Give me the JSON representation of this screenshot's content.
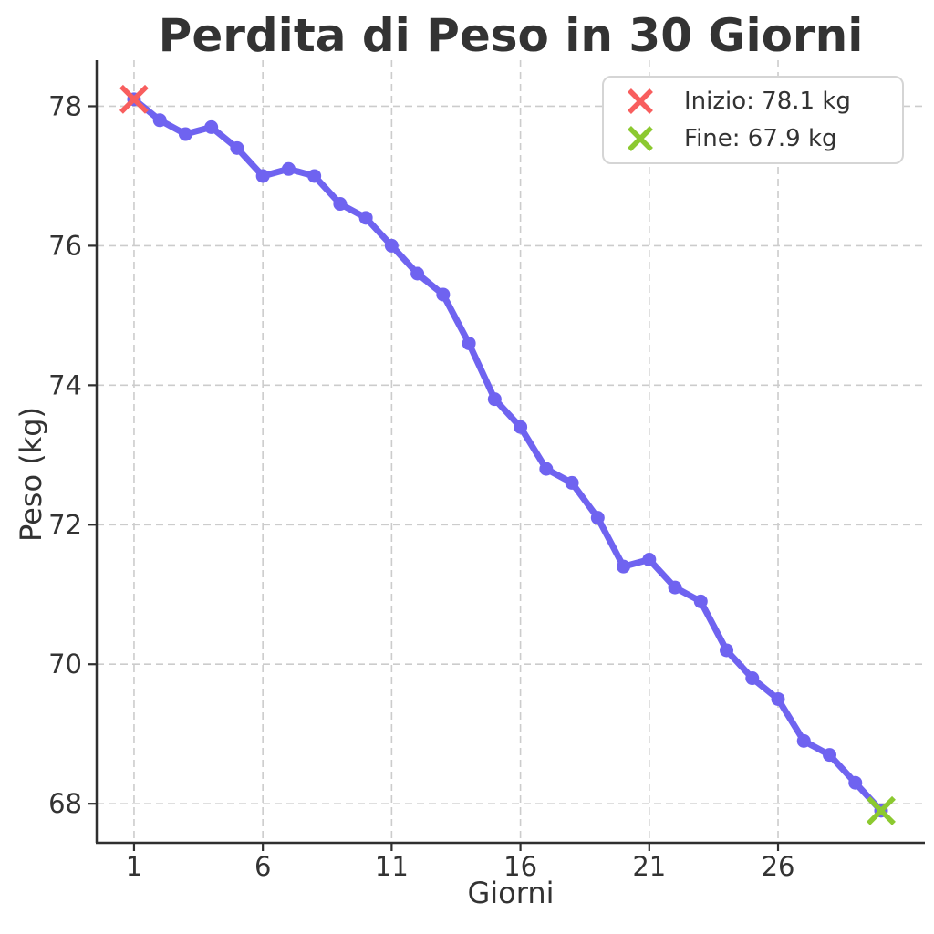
{
  "figure": {
    "background": "#ffffff"
  },
  "chart_data": {
    "type": "line",
    "title": "Perdita di Peso in 30 Giorni",
    "xlabel": "Giorni",
    "ylabel": "Peso (kg)",
    "x": [
      1,
      2,
      3,
      4,
      5,
      6,
      7,
      8,
      9,
      10,
      11,
      12,
      13,
      14,
      15,
      16,
      17,
      18,
      19,
      20,
      21,
      22,
      23,
      24,
      25,
      26,
      27,
      28,
      29,
      30
    ],
    "series": [
      {
        "name": "Peso",
        "values": [
          78.1,
          77.8,
          77.6,
          77.7,
          77.4,
          77.0,
          77.1,
          77.0,
          76.6,
          76.4,
          76.0,
          75.6,
          75.3,
          74.6,
          73.8,
          73.4,
          72.8,
          72.6,
          72.1,
          71.4,
          71.5,
          71.1,
          70.9,
          70.2,
          69.8,
          69.5,
          68.9,
          68.7,
          68.3,
          67.9
        ]
      }
    ],
    "xlim": [
      -0.45,
      31.7
    ],
    "ylim": [
      67.44,
      78.66
    ],
    "xticks": [
      1,
      6,
      11,
      16,
      21,
      26
    ],
    "yticks": [
      68,
      70,
      72,
      74,
      76,
      78
    ],
    "grid": true,
    "grid_style": "dashed",
    "legend_position": "upper right",
    "line_color": "#6f63f0",
    "marker": "o",
    "annotations": [
      {
        "name": "inizio",
        "x": 1,
        "y": 78.1,
        "marker": "x",
        "color": "#f85e5e"
      },
      {
        "name": "fine",
        "x": 30,
        "y": 67.9,
        "marker": "x",
        "color": "#8cc930"
      }
    ],
    "legend": {
      "entries": [
        {
          "label": "Inizio: 78.1 kg",
          "marker": "x",
          "color": "#f85e5e"
        },
        {
          "label": "Fine: 67.9 kg",
          "marker": "x",
          "color": "#8cc930"
        }
      ]
    }
  },
  "colors": {
    "line": "#6f63f0",
    "start_marker": "#f85e5e",
    "end_marker": "#8cc930",
    "grid": "#cccccc",
    "spine": "#2f2f2f",
    "text": "#333333",
    "legend_border": "#d5d5d5"
  }
}
